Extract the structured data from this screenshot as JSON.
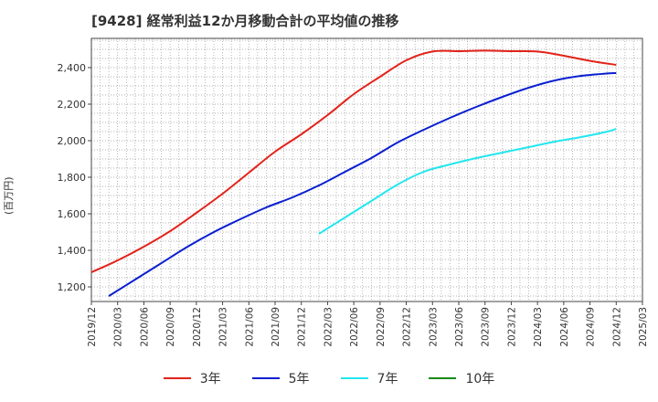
{
  "chart_data": {
    "type": "line",
    "title": "[9428]  経常利益12か月移動合計の平均値の推移",
    "ylabel": "(百万円)",
    "xlabel": "",
    "ylim": [
      1120,
      2560
    ],
    "yticks": [
      1200,
      1400,
      1600,
      1800,
      2000,
      2200,
      2400
    ],
    "ytick_labels": [
      "1,200",
      "1,400",
      "1,600",
      "1,800",
      "2,000",
      "2,200",
      "2,400"
    ],
    "x_tick_labels": [
      "2019/12",
      "2020/03",
      "2020/06",
      "2020/09",
      "2020/12",
      "2021/03",
      "2021/06",
      "2021/09",
      "2021/12",
      "2022/03",
      "2022/06",
      "2022/09",
      "2022/12",
      "2023/03",
      "2023/06",
      "2023/09",
      "2023/12",
      "2024/03",
      "2024/06",
      "2024/09",
      "2024/12",
      "2025/03"
    ],
    "x_range_months": [
      0,
      63
    ],
    "grid": true,
    "series": [
      {
        "name": "3年",
        "color": "#e2231a",
        "x": [
          0,
          3,
          6,
          9,
          12,
          15,
          18,
          21,
          24,
          27,
          30,
          33,
          36,
          39,
          42,
          45,
          48,
          51,
          54,
          57,
          60
        ],
        "values": [
          1280,
          1345,
          1420,
          1505,
          1605,
          1710,
          1825,
          1940,
          2035,
          2140,
          2255,
          2350,
          2440,
          2488,
          2490,
          2493,
          2490,
          2488,
          2465,
          2437,
          2415
        ]
      },
      {
        "name": "5年",
        "color": "#0a1fd0",
        "x": [
          2,
          5,
          8,
          11,
          14,
          17,
          20,
          23,
          26,
          29,
          32,
          35,
          38,
          41,
          44,
          47,
          50,
          53,
          56,
          59,
          60
        ],
        "values": [
          1150,
          1240,
          1330,
          1420,
          1500,
          1570,
          1635,
          1690,
          1755,
          1830,
          1905,
          1990,
          2060,
          2125,
          2185,
          2240,
          2290,
          2330,
          2355,
          2368,
          2370
        ]
      },
      {
        "name": "7年",
        "color": "#22e6ee",
        "x": [
          26,
          29,
          32,
          35,
          38,
          41,
          44,
          47,
          50,
          53,
          56,
          59,
          60
        ],
        "values": [
          1490,
          1580,
          1670,
          1760,
          1830,
          1870,
          1905,
          1935,
          1965,
          1995,
          2020,
          2050,
          2065
        ]
      },
      {
        "name": "10年",
        "color": "#1a8a1a",
        "x": [],
        "values": []
      }
    ]
  }
}
